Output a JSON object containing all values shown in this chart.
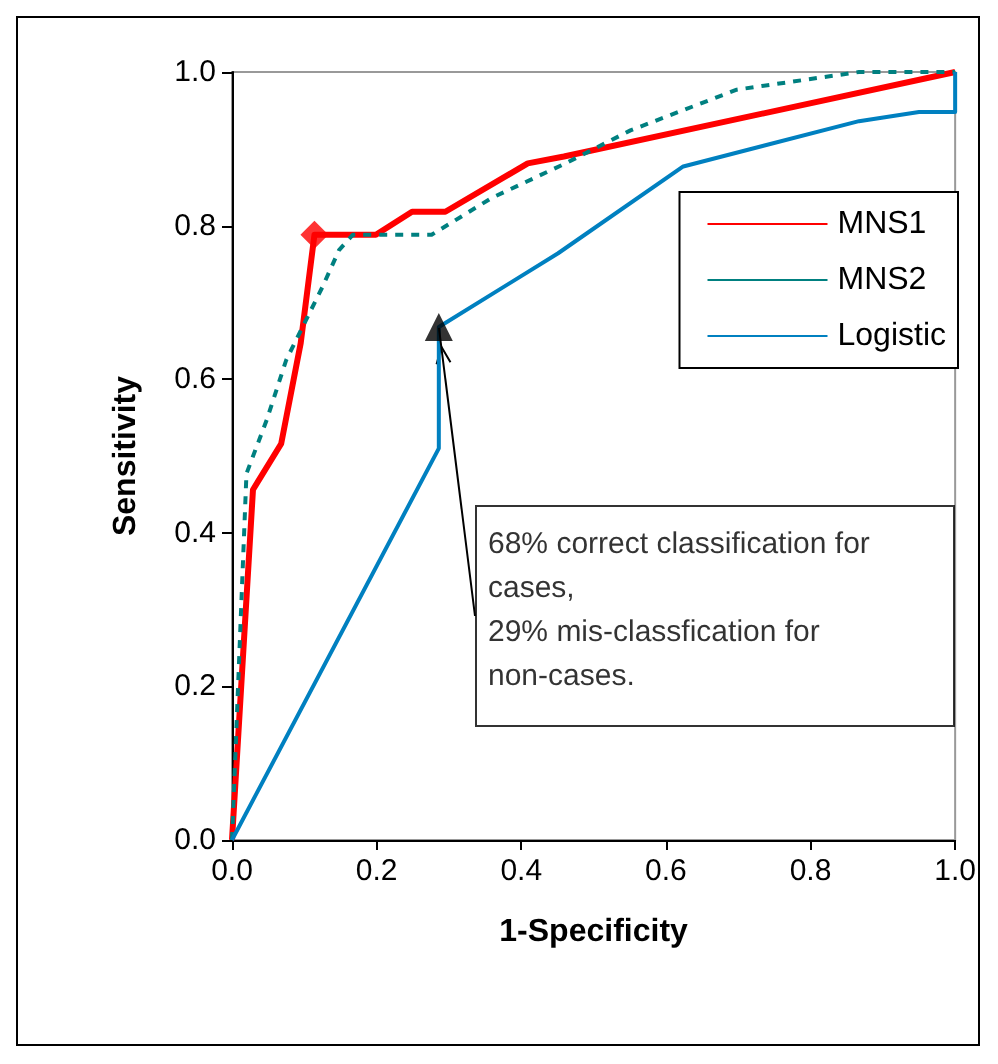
{
  "chart_data": {
    "type": "line",
    "xlabel": "1-Specificity",
    "ylabel": "Sensitivity",
    "xlim": [
      0,
      1
    ],
    "ylim": [
      0,
      1
    ],
    "xticks": [
      {
        "value": 0,
        "label": "0.0"
      },
      {
        "value": 0.2,
        "label": "0.2"
      },
      {
        "value": 0.4,
        "label": "0.4"
      },
      {
        "value": 0.6,
        "label": "0.6"
      },
      {
        "value": 0.8,
        "label": "0.8"
      },
      {
        "value": 1,
        "label": "1.0"
      }
    ],
    "yticks": [
      {
        "value": 0,
        "label": "0.0"
      },
      {
        "value": 0.2,
        "label": "0.2"
      },
      {
        "value": 0.4,
        "label": "0.4"
      },
      {
        "value": 0.6,
        "label": "0.6"
      },
      {
        "value": 0.8,
        "label": "0.8"
      },
      {
        "value": 1,
        "label": "1.0"
      }
    ],
    "grid": false,
    "legend": "top right",
    "marker": "none",
    "series": [
      {
        "name": "MNS1",
        "color": "#ff0000",
        "line_style": "solid",
        "x": [
          0,
          0.029,
          0.068,
          0.095,
          0.114,
          0.199,
          0.249,
          0.295,
          0.409,
          0.459,
          1
        ],
        "values": [
          0,
          0.456,
          0.516,
          0.647,
          0.788,
          0.788,
          0.818,
          0.818,
          0.881,
          0.89,
          1
        ]
      },
      {
        "name": "MNS2",
        "color": "#008080",
        "line_style": "dashed",
        "x": [
          0,
          0.02,
          0.048,
          0.075,
          0.125,
          0.148,
          0.167,
          0.276,
          0.359,
          0.459,
          0.551,
          0.698,
          0.867,
          1
        ],
        "values": [
          0,
          0.477,
          0.547,
          0.625,
          0.72,
          0.768,
          0.788,
          0.788,
          0.836,
          0.88,
          0.924,
          0.977,
          1,
          1
        ]
      },
      {
        "name": "Logistic",
        "color": "#0080c0",
        "line_style": "solid",
        "x": [
          0,
          0.286,
          0.286,
          0.451,
          0.624,
          0.867,
          0.95,
          1,
          1
        ],
        "values": [
          0,
          0.51,
          0.668,
          0.764,
          0.877,
          0.936,
          0.948,
          0.948,
          1
        ]
      },
      {
        "type": "scatter",
        "color": "#ff0000",
        "marker": "diamond",
        "x": [
          0.114
        ],
        "values": [
          0.788
        ]
      },
      {
        "type": "scatter",
        "color": "#000000",
        "marker": "triangle",
        "x": [
          0.286
        ],
        "values": [
          0.668
        ]
      }
    ],
    "annotations": [
      {
        "text": "68% correct classification for cases,\n29% mis-classfication for non-cases.",
        "x": 0.286,
        "y": 0.668
      }
    ]
  }
}
